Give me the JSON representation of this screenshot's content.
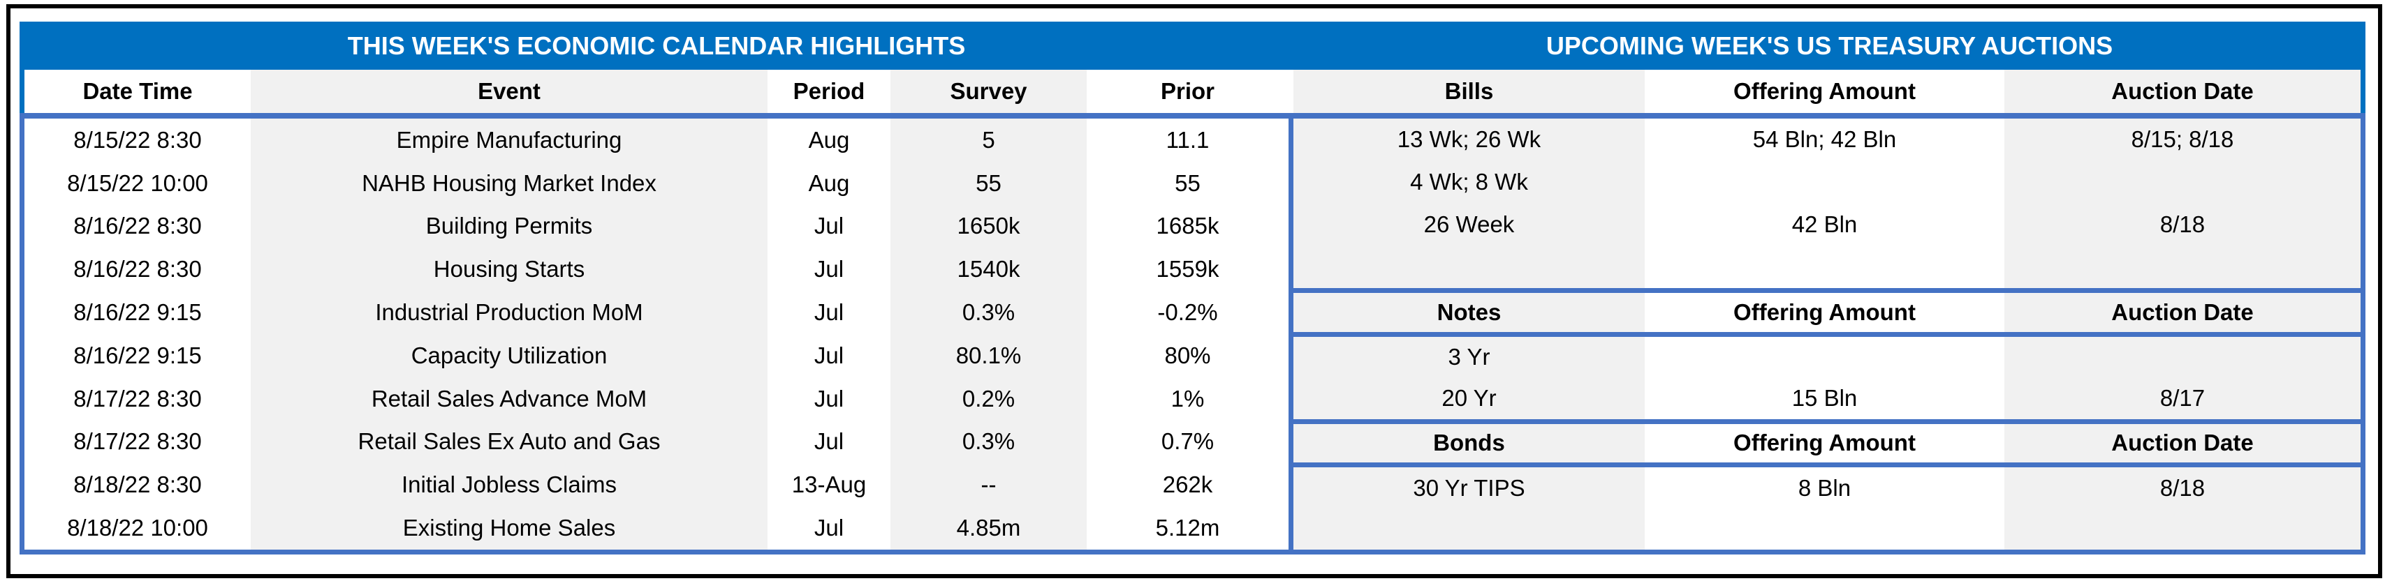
{
  "colors": {
    "band_blue": "#0070C0",
    "border_blue": "#4472C4",
    "stripe_gray": "#F1F1F1",
    "frame_black": "#000000"
  },
  "left_table": {
    "title": "THIS WEEK'S ECONOMIC CALENDAR HIGHLIGHTS",
    "columns": [
      "Date Time",
      "Event",
      "Period",
      "Survey",
      "Prior"
    ],
    "rows": [
      [
        "8/15/22 8:30",
        "Empire Manufacturing",
        "Aug",
        "5",
        "11.1"
      ],
      [
        "8/15/22 10:00",
        "NAHB Housing Market Index",
        "Aug",
        "55",
        "55"
      ],
      [
        "8/16/22 8:30",
        "Building Permits",
        "Jul",
        "1650k",
        "1685k"
      ],
      [
        "8/16/22 8:30",
        "Housing Starts",
        "Jul",
        "1540k",
        "1559k"
      ],
      [
        "8/16/22 9:15",
        "Industrial Production MoM",
        "Jul",
        "0.3%",
        "-0.2%"
      ],
      [
        "8/16/22 9:15",
        "Capacity Utilization",
        "Jul",
        "80.1%",
        "80%"
      ],
      [
        "8/17/22 8:30",
        "Retail Sales Advance MoM",
        "Jul",
        "0.2%",
        "1%"
      ],
      [
        "8/17/22 8:30",
        "Retail Sales Ex Auto and Gas",
        "Jul",
        "0.3%",
        "0.7%"
      ],
      [
        "8/18/22 8:30",
        "Initial Jobless Claims",
        "13-Aug",
        "--",
        "262k"
      ],
      [
        "8/18/22 10:00",
        "Existing Home Sales",
        "Jul",
        "4.85m",
        "5.12m"
      ]
    ]
  },
  "right_table": {
    "title": "UPCOMING WEEK'S US TREASURY AUCTIONS",
    "sections": [
      {
        "header": [
          "Bills",
          "Offering Amount",
          "Auction Date"
        ],
        "rows": [
          [
            "13 Wk; 26 Wk",
            "54 Bln; 42 Bln",
            "8/15; 8/18"
          ],
          [
            "4 Wk; 8 Wk",
            "",
            ""
          ],
          [
            "26 Week",
            "42 Bln",
            "8/18"
          ],
          [
            "",
            "",
            ""
          ]
        ]
      },
      {
        "header": [
          "Notes",
          "Offering Amount",
          "Auction Date"
        ],
        "rows": [
          [
            "3 Yr",
            "",
            ""
          ],
          [
            "20 Yr",
            "15 Bln",
            "8/17"
          ]
        ]
      },
      {
        "header": [
          "Bonds",
          "Offering Amount",
          "Auction Date"
        ],
        "rows": [
          [
            "30 Yr TIPS",
            "8 Bln",
            "8/18"
          ],
          [
            "",
            "",
            ""
          ]
        ]
      }
    ]
  }
}
